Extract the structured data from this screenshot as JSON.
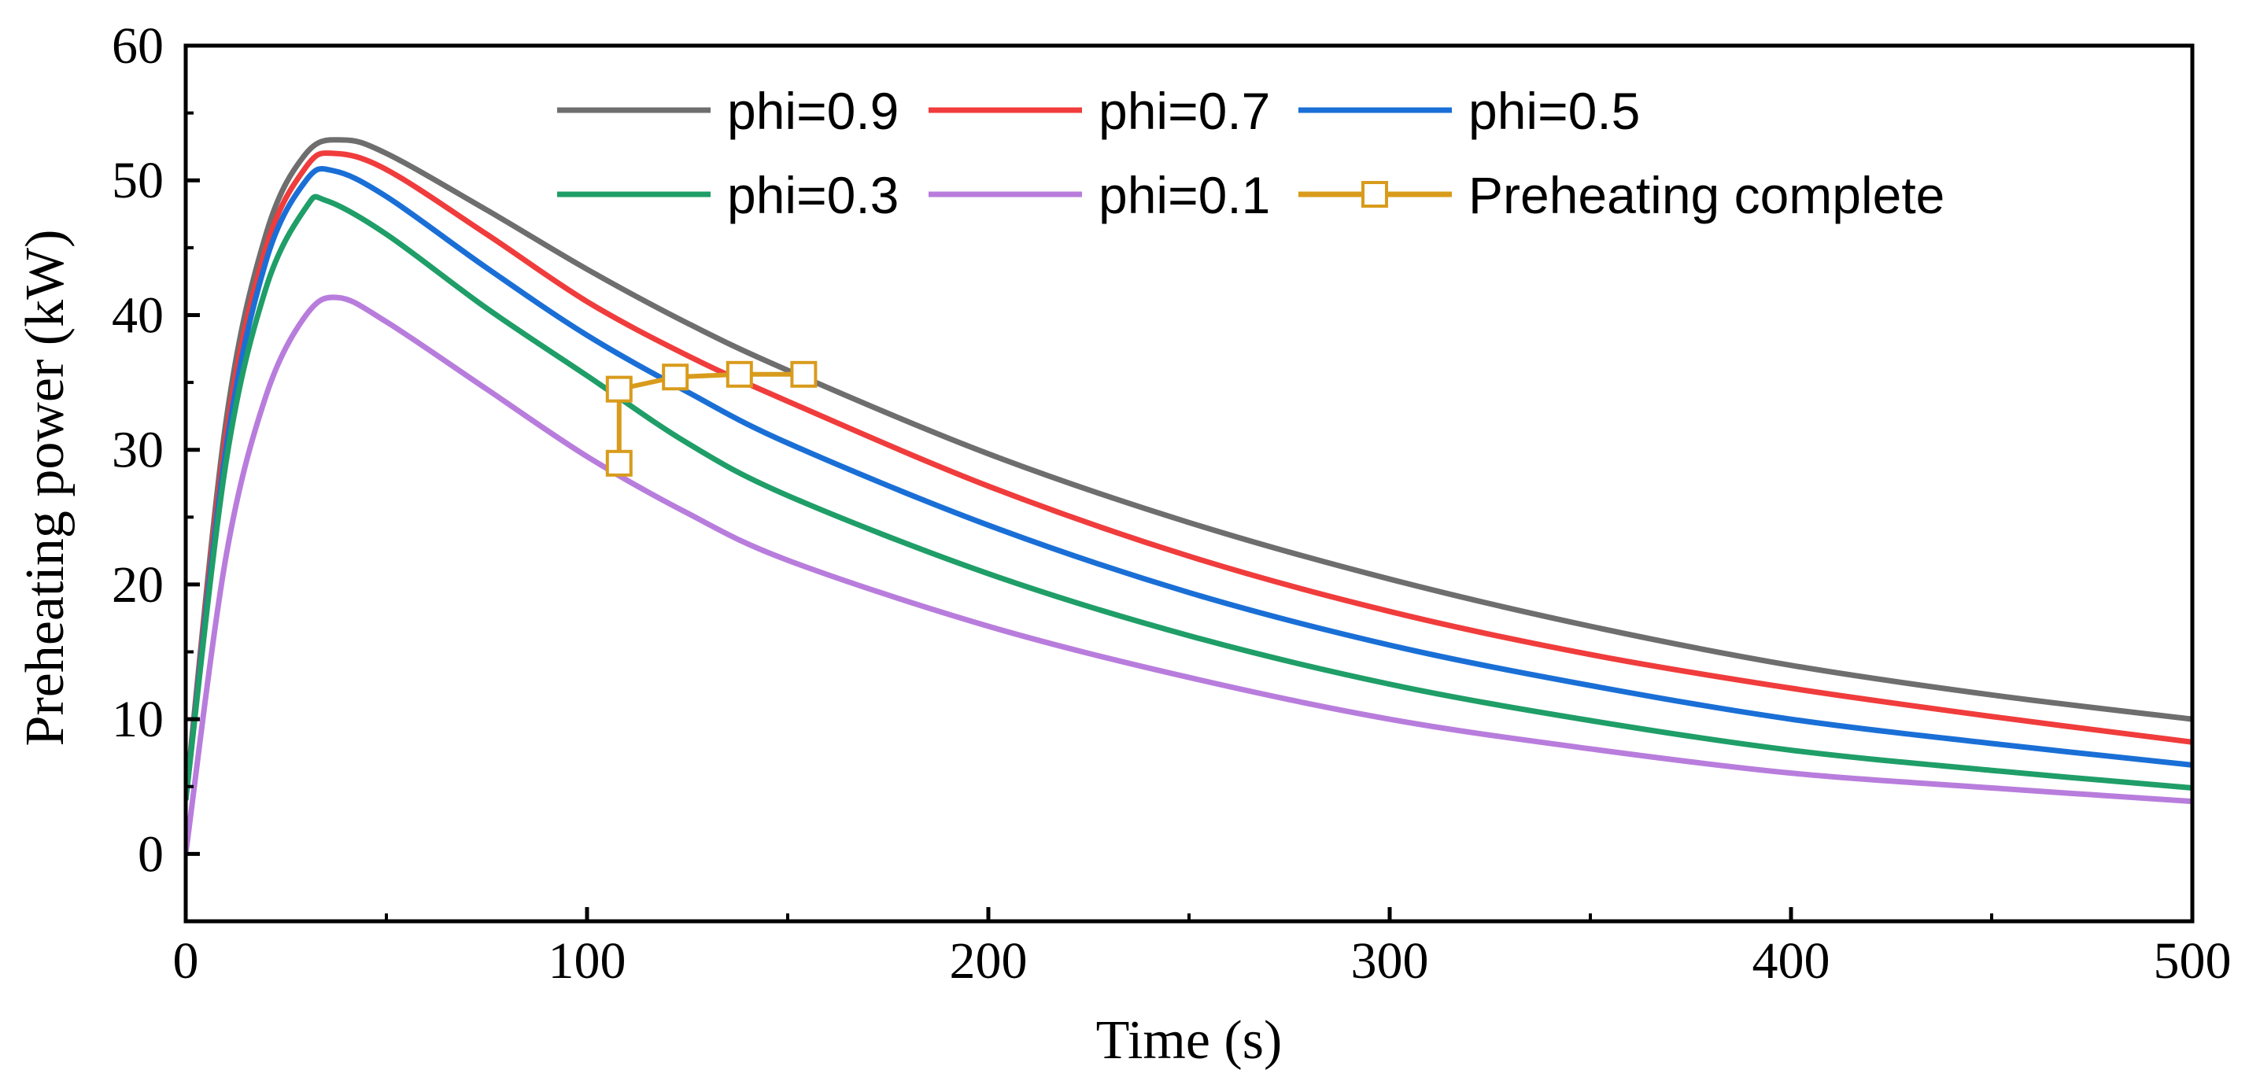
{
  "chart_data": {
    "type": "line",
    "title": "",
    "xlabel": "Time (s)",
    "ylabel": "Preheating power (kW)",
    "xlim": [
      0,
      500
    ],
    "ylim": [
      -5,
      60
    ],
    "xticks": [
      0,
      100,
      200,
      300,
      400,
      500
    ],
    "yticks": [
      0,
      10,
      20,
      30,
      40,
      50,
      60
    ],
    "grid": false,
    "legend_position": "top-right",
    "series": [
      {
        "name": "phi=0.9",
        "color": "#6e6e6e",
        "x": [
          0,
          10,
          20,
          30,
          39,
          50,
          75,
          100,
          125,
          150,
          200,
          250,
          300,
          350,
          400,
          450,
          500
        ],
        "y": [
          4,
          32,
          46,
          52,
          53,
          52,
          47.8,
          43.4,
          39.4,
          35.9,
          29.7,
          24.6,
          20.4,
          16.9,
          14.0,
          11.8,
          10.0
        ]
      },
      {
        "name": "phi=0.7",
        "color": "#f03c3c",
        "x": [
          0,
          10,
          20,
          30,
          37,
          50,
          75,
          100,
          125,
          150,
          200,
          250,
          300,
          350,
          400,
          450,
          500
        ],
        "y": [
          4,
          31,
          45,
          51,
          52,
          50.8,
          46,
          41,
          37,
          33.6,
          27.3,
          22.1,
          18.0,
          14.8,
          12.3,
          10.2,
          8.3
        ]
      },
      {
        "name": "phi=0.5",
        "color": "#1a6fd6",
        "x": [
          0,
          10,
          20,
          30,
          37,
          50,
          75,
          100,
          125,
          150,
          200,
          250,
          300,
          350,
          400,
          450,
          500
        ],
        "y": [
          4,
          30,
          44,
          50,
          50.7,
          48.8,
          43.5,
          38.5,
          34.3,
          30.5,
          24.4,
          19.4,
          15.5,
          12.5,
          10.0,
          8.2,
          6.6
        ]
      },
      {
        "name": "phi=0.3",
        "color": "#1f9e68",
        "x": [
          0,
          10,
          20,
          30,
          35,
          50,
          75,
          100,
          125,
          150,
          200,
          250,
          300,
          350,
          400,
          450,
          500
        ],
        "y": [
          4,
          29,
          42,
          48,
          48.5,
          46,
          40.5,
          35.5,
          30.5,
          26.6,
          20.8,
          16.2,
          12.6,
          9.9,
          7.7,
          6.2,
          4.9
        ]
      },
      {
        "name": "phi=0.1",
        "color": "#b87ddc",
        "x": [
          0,
          10,
          20,
          30,
          38,
          50,
          75,
          100,
          125,
          150,
          200,
          250,
          300,
          350,
          400,
          450,
          500
        ],
        "y": [
          0,
          22,
          34,
          40,
          41.3,
          39.5,
          34.5,
          29.5,
          25.3,
          21.8,
          16.9,
          13.1,
          10.0,
          7.8,
          6.0,
          4.9,
          3.9
        ]
      }
    ],
    "marker_series": {
      "name": "Preheating complete",
      "color": "#d89b1c",
      "x": [
        108,
        108,
        122,
        138,
        154
      ],
      "y": [
        29,
        34.5,
        35.4,
        35.6,
        35.6
      ]
    }
  }
}
